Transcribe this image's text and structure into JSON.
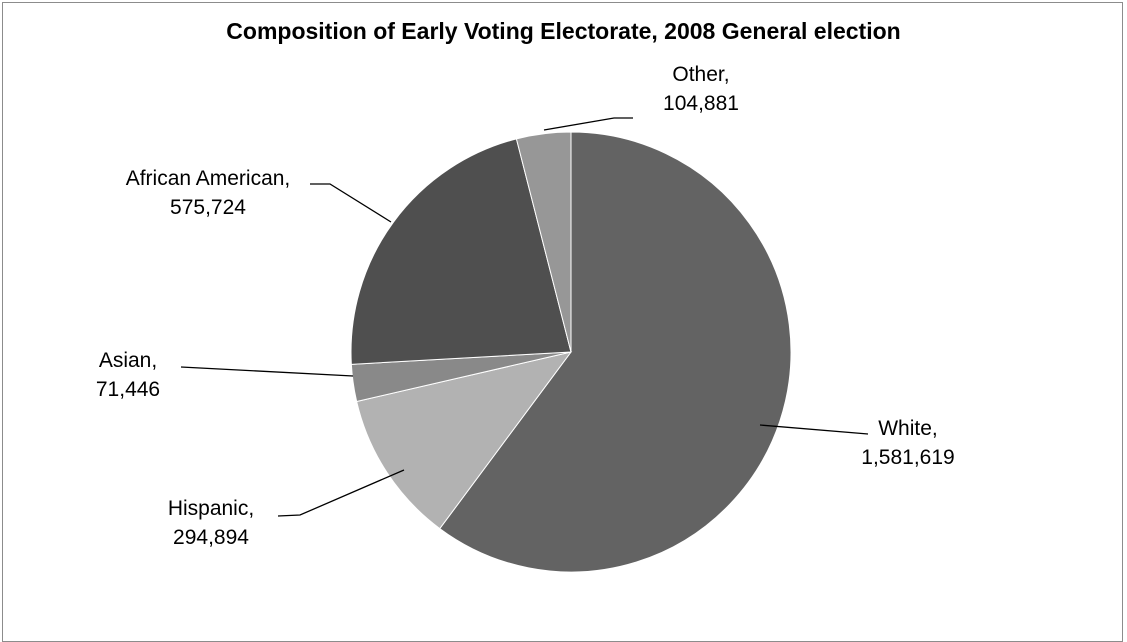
{
  "chart_data": {
    "type": "pie",
    "title": "Composition of Early Voting Electorate, 2008 General election",
    "slices": [
      {
        "name": "White",
        "value": 1581619,
        "value_label": "1,581,619",
        "color": "#636363"
      },
      {
        "name": "Hispanic",
        "value": 294894,
        "value_label": "294,894",
        "color": "#b2b2b2"
      },
      {
        "name": "Asian",
        "value": 71446,
        "value_label": "71,446",
        "color": "#898989"
      },
      {
        "name": "African American",
        "value": 575724,
        "value_label": "575,724",
        "color": "#4f4f4f"
      },
      {
        "name": "Other",
        "value": 104881,
        "value_label": "104,881",
        "color": "#979797"
      }
    ],
    "start": "12 o'clock",
    "direction": "clockwise",
    "labels": "outside with leader lines",
    "legend": "none"
  }
}
